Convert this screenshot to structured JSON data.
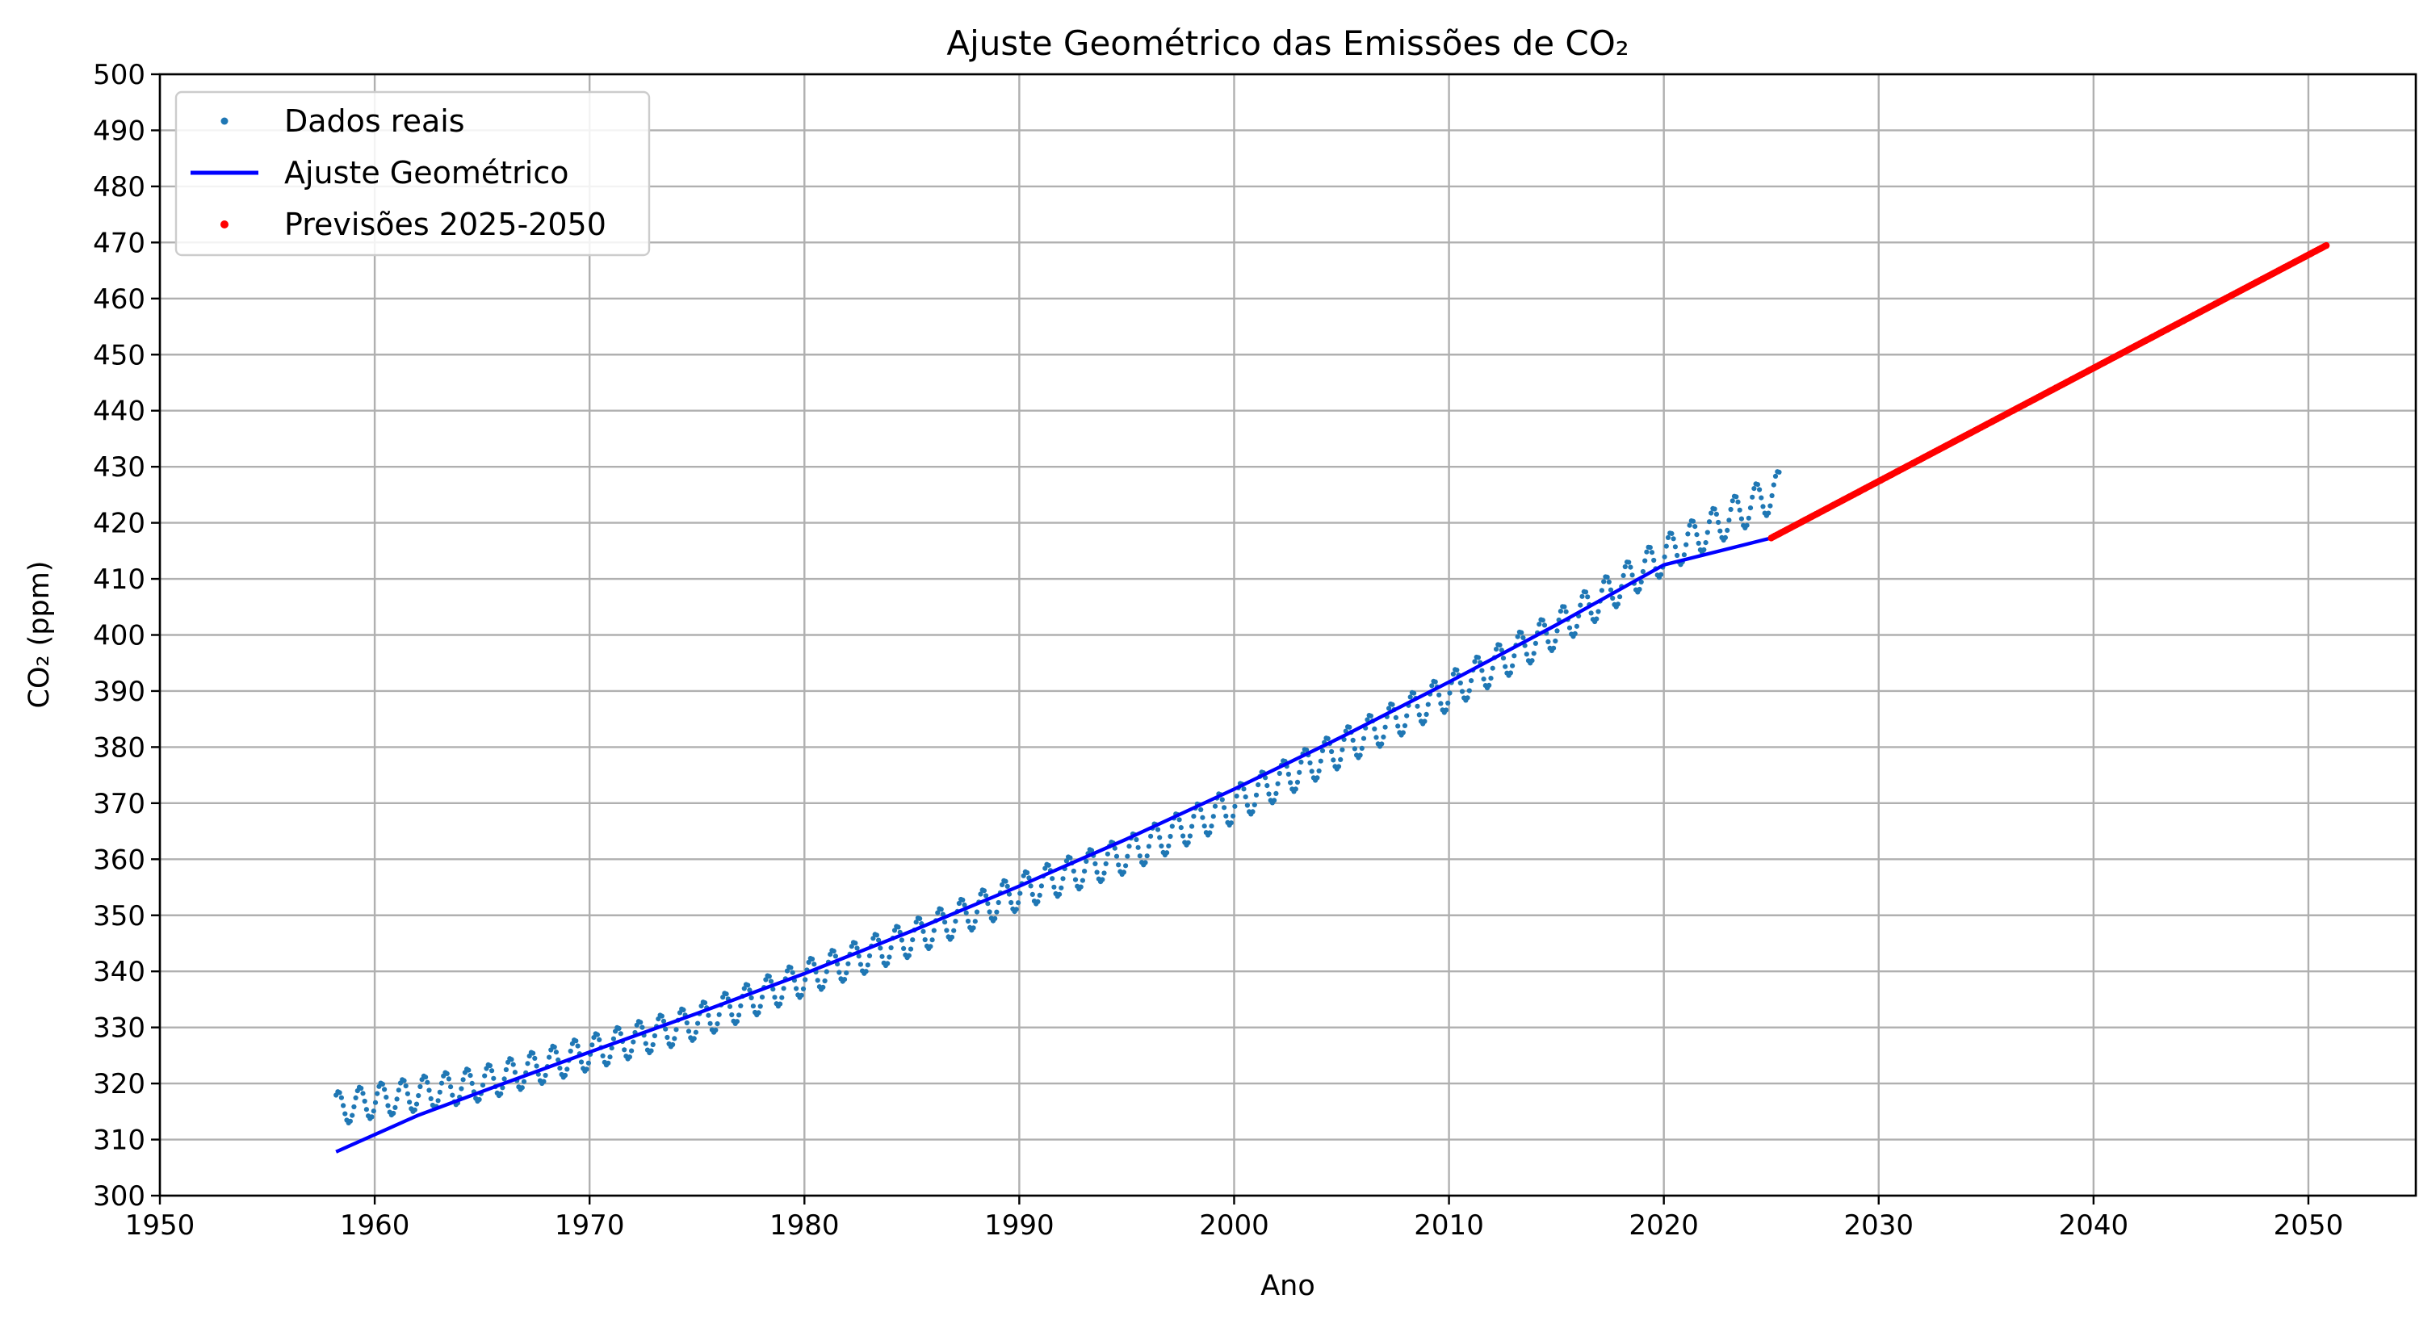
{
  "chart_data": {
    "type": "line",
    "title": "Ajuste Geométrico das Emissões de CO₂",
    "xlabel": "Ano",
    "ylabel": "CO₂ (ppm)",
    "xlim": [
      1950,
      2055
    ],
    "ylim": [
      300,
      500
    ],
    "xticks": [
      1950,
      1960,
      1970,
      1980,
      1990,
      2000,
      2010,
      2020,
      2030,
      2040,
      2050
    ],
    "yticks": [
      300,
      310,
      320,
      330,
      340,
      350,
      360,
      370,
      380,
      390,
      400,
      410,
      420,
      430,
      440,
      450,
      460,
      470,
      480,
      490,
      500
    ],
    "grid": true,
    "legend_position": "upper-left",
    "series": [
      {
        "name": "Dados reais",
        "style": "points",
        "color": "#1f77b4",
        "x_range": [
          1958.2,
          2025.4
        ],
        "step": 0.0833333,
        "trend_points": {
          "x": [
            1958.2,
            1960,
            1965,
            1970,
            1975,
            1980,
            1985,
            1990,
            1995,
            2000,
            2005,
            2010,
            2015,
            2020,
            2025.4
          ],
          "y": [
            315.5,
            316.9,
            320.0,
            325.5,
            331.0,
            338.8,
            345.9,
            354.2,
            360.8,
            369.7,
            379.8,
            389.9,
            401.0,
            414.2,
            426.0
          ]
        },
        "seasonal_amplitude": [
          3.0,
          3.4
        ]
      },
      {
        "name": "Ajuste Geométrico",
        "style": "line",
        "color": "#0000ff",
        "x": [
          1958.2,
          1962.0,
          1966.0,
          1970.0,
          1975.0,
          1980.0,
          1985.0,
          1990.0,
          1995.0,
          2000.0,
          2005.0,
          2010.0,
          2015.0,
          2020.0,
          2025.0
        ],
        "y": [
          307.8,
          314.3,
          320.0,
          325.6,
          332.5,
          339.6,
          347.2,
          355.2,
          363.6,
          372.5,
          381.8,
          391.6,
          401.8,
          412.5,
          417.3
        ]
      },
      {
        "name": "Previsões 2025-2050",
        "style": "points",
        "color": "#ff0000",
        "x_range": [
          2025.0,
          2050.9
        ],
        "y_range": [
          417.3,
          469.6
        ],
        "step": 0.0833333
      }
    ]
  }
}
